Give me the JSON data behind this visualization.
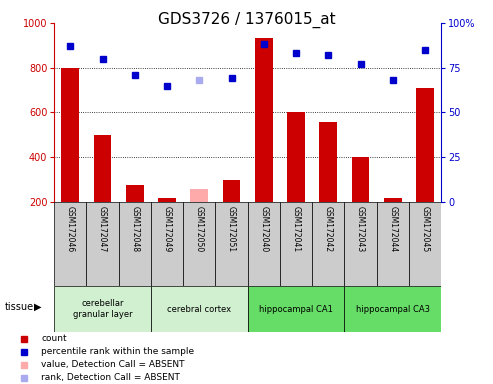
{
  "title": "GDS3726 / 1376015_at",
  "samples": [
    "GSM172046",
    "GSM172047",
    "GSM172048",
    "GSM172049",
    "GSM172050",
    "GSM172051",
    "GSM172040",
    "GSM172041",
    "GSM172042",
    "GSM172043",
    "GSM172044",
    "GSM172045"
  ],
  "count_values": [
    800,
    500,
    275,
    215,
    null,
    295,
    935,
    600,
    555,
    400,
    215,
    710
  ],
  "count_absent": [
    null,
    null,
    null,
    null,
    255,
    null,
    null,
    null,
    null,
    null,
    null,
    null
  ],
  "rank_values": [
    87,
    80,
    71,
    65,
    null,
    69,
    88,
    83,
    82,
    77,
    68,
    85
  ],
  "rank_absent": [
    null,
    null,
    null,
    null,
    68,
    null,
    null,
    null,
    null,
    null,
    null,
    null
  ],
  "tissues": [
    {
      "label": "cerebellar\ngranular layer",
      "start": 0,
      "end": 3,
      "color": "#d0f0d0"
    },
    {
      "label": "cerebral cortex",
      "start": 3,
      "end": 6,
      "color": "#d0f0d0"
    },
    {
      "label": "hippocampal CA1",
      "start": 6,
      "end": 9,
      "color": "#66dd66"
    },
    {
      "label": "hippocampal CA3",
      "start": 9,
      "end": 12,
      "color": "#66dd66"
    }
  ],
  "ylim_left": [
    200,
    1000
  ],
  "ylim_right": [
    0,
    100
  ],
  "bar_color": "#cc0000",
  "bar_absent_color": "#ffaaaa",
  "dot_color": "#0000cc",
  "dot_absent_color": "#aaaaee",
  "title_fontsize": 11,
  "tick_fontsize": 7,
  "label_fontsize": 7,
  "grid_color": "#000000",
  "sample_box_color": "#cccccc",
  "right_yticks": [
    0,
    25,
    50,
    75,
    100
  ],
  "right_yticklabels": [
    "0",
    "25",
    "50",
    "75",
    "100%"
  ]
}
